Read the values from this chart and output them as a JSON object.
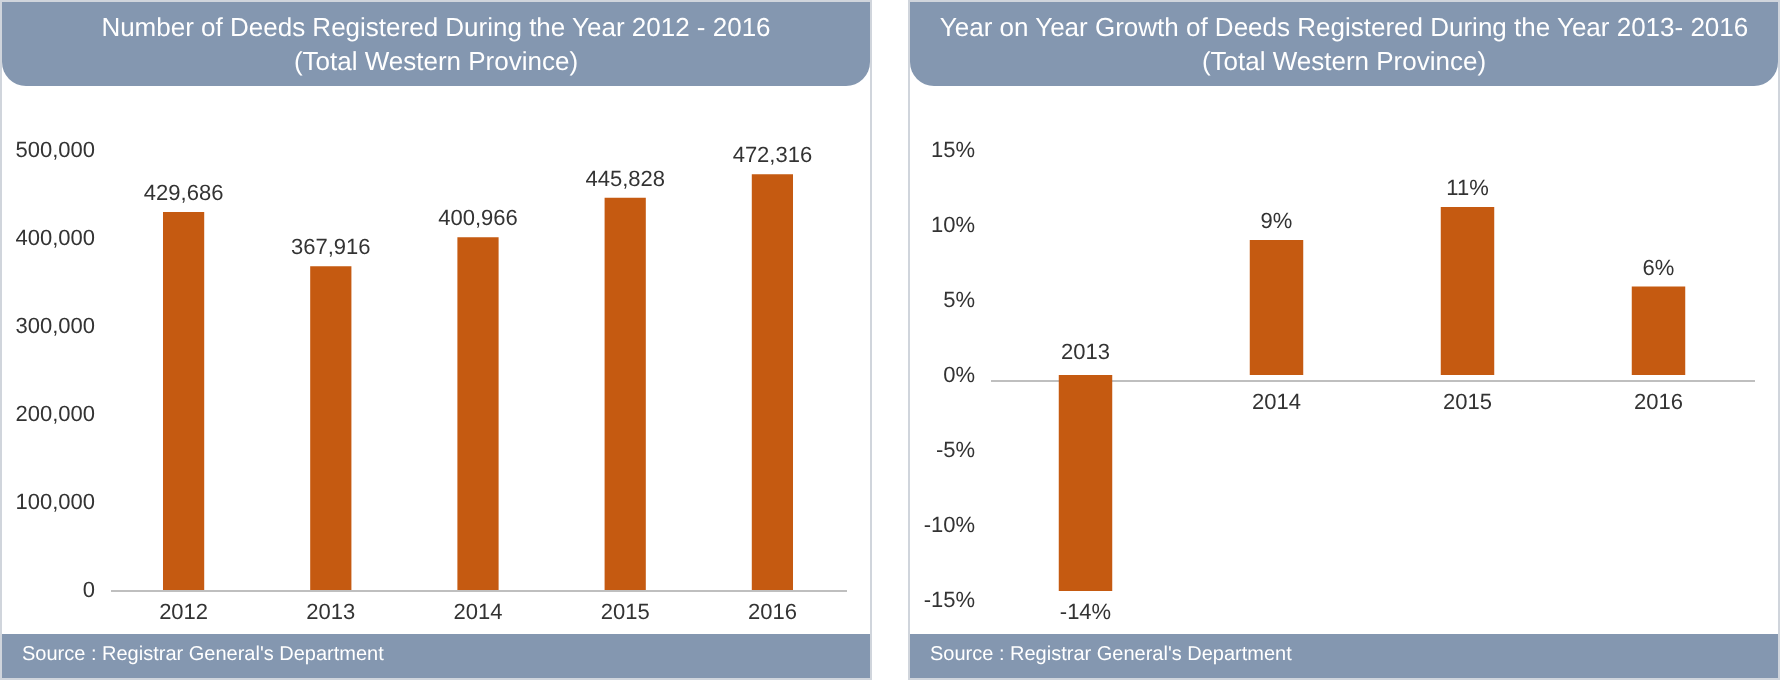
{
  "chart_data": [
    {
      "type": "bar",
      "title": "Number of Deeds Registered During the Year 2012 - 2016",
      "subtitle": "(Total Western Province)",
      "categories": [
        "2012",
        "2013",
        "2014",
        "2015",
        "2016"
      ],
      "values": [
        429686,
        367916,
        400966,
        445828,
        472316
      ],
      "value_labels": [
        "429,686",
        "367,916",
        "400,966",
        "445,828",
        "472,316"
      ],
      "color": "#c55a11",
      "ylim": [
        0,
        500000
      ],
      "yticks": [
        {
          "value": 0,
          "label": "0"
        },
        {
          "value": 100000,
          "label": "100,000"
        },
        {
          "value": 200000,
          "label": "200,000"
        },
        {
          "value": 300000,
          "label": "300,000"
        },
        {
          "value": 400000,
          "label": "400,000"
        },
        {
          "value": 500000,
          "label": "500,000"
        }
      ],
      "annotations": [
        "Source : Registrar General's Department"
      ]
    },
    {
      "type": "bar",
      "title": "Year on Year Growth of Deeds Registered During the Year 2013- 2016",
      "subtitle": "(Total Western Province)",
      "categories": [
        "2013",
        "2014",
        "2015",
        "2016"
      ],
      "values": [
        -14.4,
        9.0,
        11.2,
        5.9
      ],
      "value_labels": [
        "-14%",
        "9%",
        "11%",
        "6%"
      ],
      "color": "#c55a11",
      "ylim": [
        -15,
        15
      ],
      "yticks": [
        {
          "value": -15,
          "label": "-15%"
        },
        {
          "value": -10,
          "label": "-10%"
        },
        {
          "value": -5,
          "label": "-5%"
        },
        {
          "value": 0,
          "label": "0%"
        },
        {
          "value": 5,
          "label": "5%"
        },
        {
          "value": 10,
          "label": "10%"
        },
        {
          "value": 15,
          "label": "15%"
        }
      ],
      "annotations": [
        "Source : Registrar General's Department"
      ]
    }
  ]
}
